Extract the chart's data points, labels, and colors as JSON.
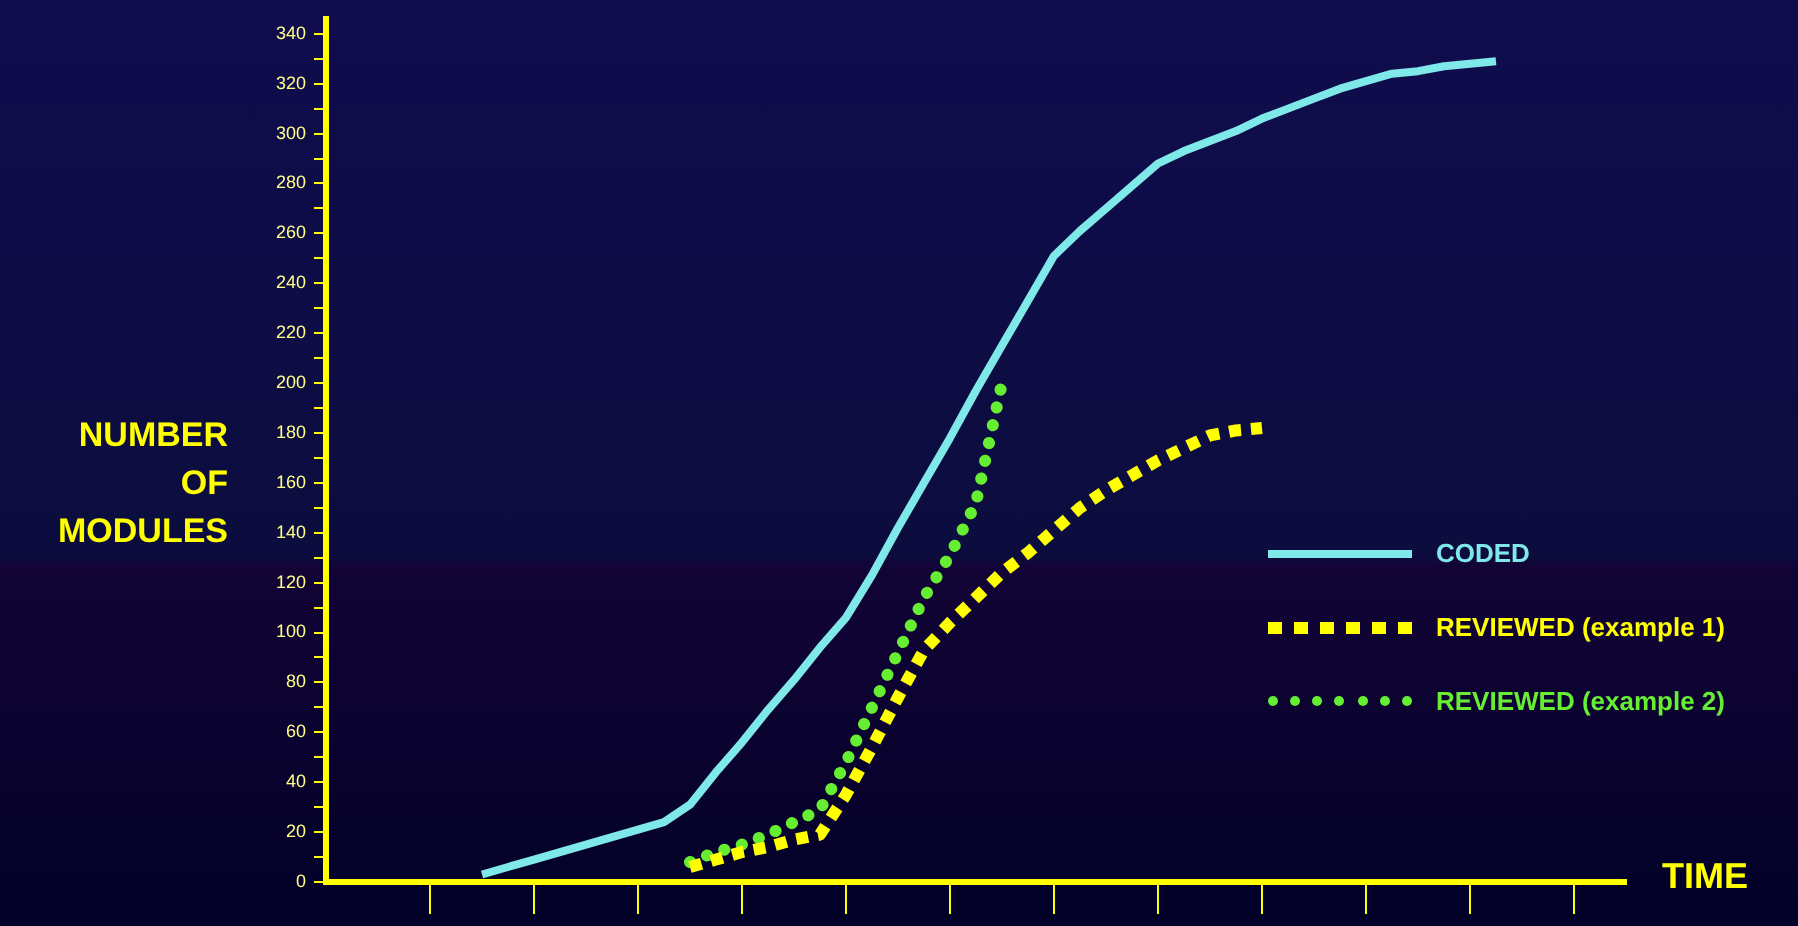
{
  "chart_data": {
    "type": "line",
    "xlabel": "TIME",
    "ylabel": "NUMBER\nOF\nMODULES",
    "categories": [
      null,
      null,
      null,
      null,
      null,
      null,
      null,
      null,
      null,
      null,
      null,
      null,
      null,
      null,
      null,
      null,
      null,
      null,
      null,
      null,
      null,
      null,
      null,
      null,
      null,
      null,
      null,
      null,
      null,
      null,
      null,
      null,
      null,
      null,
      null,
      null,
      null,
      null,
      null,
      null,
      null,
      null,
      null,
      null,
      null,
      null,
      null,
      null,
      null,
      null,
      null
    ],
    "ylim": [
      0,
      346
    ],
    "yticks": [
      0,
      {
        "value": 10,
        "label": null
      },
      20,
      {
        "value": 30,
        "label": null
      },
      40,
      {
        "value": 50,
        "label": null
      },
      60,
      {
        "value": 70,
        "label": null
      },
      80,
      {
        "value": 90,
        "label": null
      },
      100,
      {
        "value": 110,
        "label": null
      },
      120,
      {
        "value": 130,
        "label": null
      },
      140,
      {
        "value": 150,
        "label": null
      },
      160,
      {
        "value": 170,
        "label": null
      },
      180,
      {
        "value": 190,
        "label": null
      },
      200,
      {
        "value": 210,
        "label": null
      },
      220,
      {
        "value": 230,
        "label": null
      },
      240,
      {
        "value": 250,
        "label": null
      },
      260,
      {
        "value": 270,
        "label": null
      },
      280,
      {
        "value": 290,
        "label": null
      },
      300,
      {
        "value": 310,
        "label": null
      },
      320,
      {
        "value": 330,
        "label": null
      },
      340
    ],
    "tick_labels": "y",
    "grid": false,
    "legend": "right",
    "marker": "none",
    "series": [
      {
        "name": "CODED",
        "color": "#7fe8e8",
        "line_style": "solid",
        "values": [
          null,
          null,
          null,
          null,
          null,
          null,
          3,
          6,
          9,
          12,
          15,
          18,
          21,
          24,
          31,
          44,
          56,
          69,
          81,
          94,
          106,
          123,
          142,
          160,
          178,
          197,
          215,
          233,
          251,
          261,
          270,
          279,
          288,
          293,
          297,
          301,
          306,
          310,
          314,
          318,
          321,
          324,
          325,
          327,
          328,
          329,
          null,
          null,
          null,
          null,
          null
        ]
      },
      {
        "name": "REVIEWED (example 1)",
        "color": "#ffff00",
        "line_style": "dashed",
        "values": [
          null,
          null,
          null,
          null,
          null,
          null,
          null,
          null,
          null,
          null,
          null,
          null,
          null,
          null,
          6,
          9,
          12,
          14,
          17,
          19,
          35,
          54,
          74,
          93,
          104,
          114,
          124,
          132,
          141,
          150,
          157,
          163,
          169,
          174,
          179,
          181,
          182,
          null,
          null,
          null,
          null,
          null,
          null,
          null,
          null,
          null,
          null,
          null,
          null,
          null,
          null
        ]
      },
      {
        "name": "REVIEWED (example 2)",
        "color": "#66ee33",
        "line_style": "dotted",
        "values": [
          null,
          null,
          null,
          null,
          null,
          null,
          null,
          null,
          null,
          null,
          null,
          null,
          null,
          null,
          8,
          12,
          15,
          19,
          24,
          29,
          48,
          70,
          92,
          114,
          131,
          152,
          200,
          null,
          null,
          null,
          null,
          null,
          null,
          null,
          null,
          null,
          null,
          null,
          null,
          null,
          null,
          null,
          null,
          null,
          null,
          null,
          null,
          null,
          null,
          null,
          null
        ]
      }
    ]
  }
}
